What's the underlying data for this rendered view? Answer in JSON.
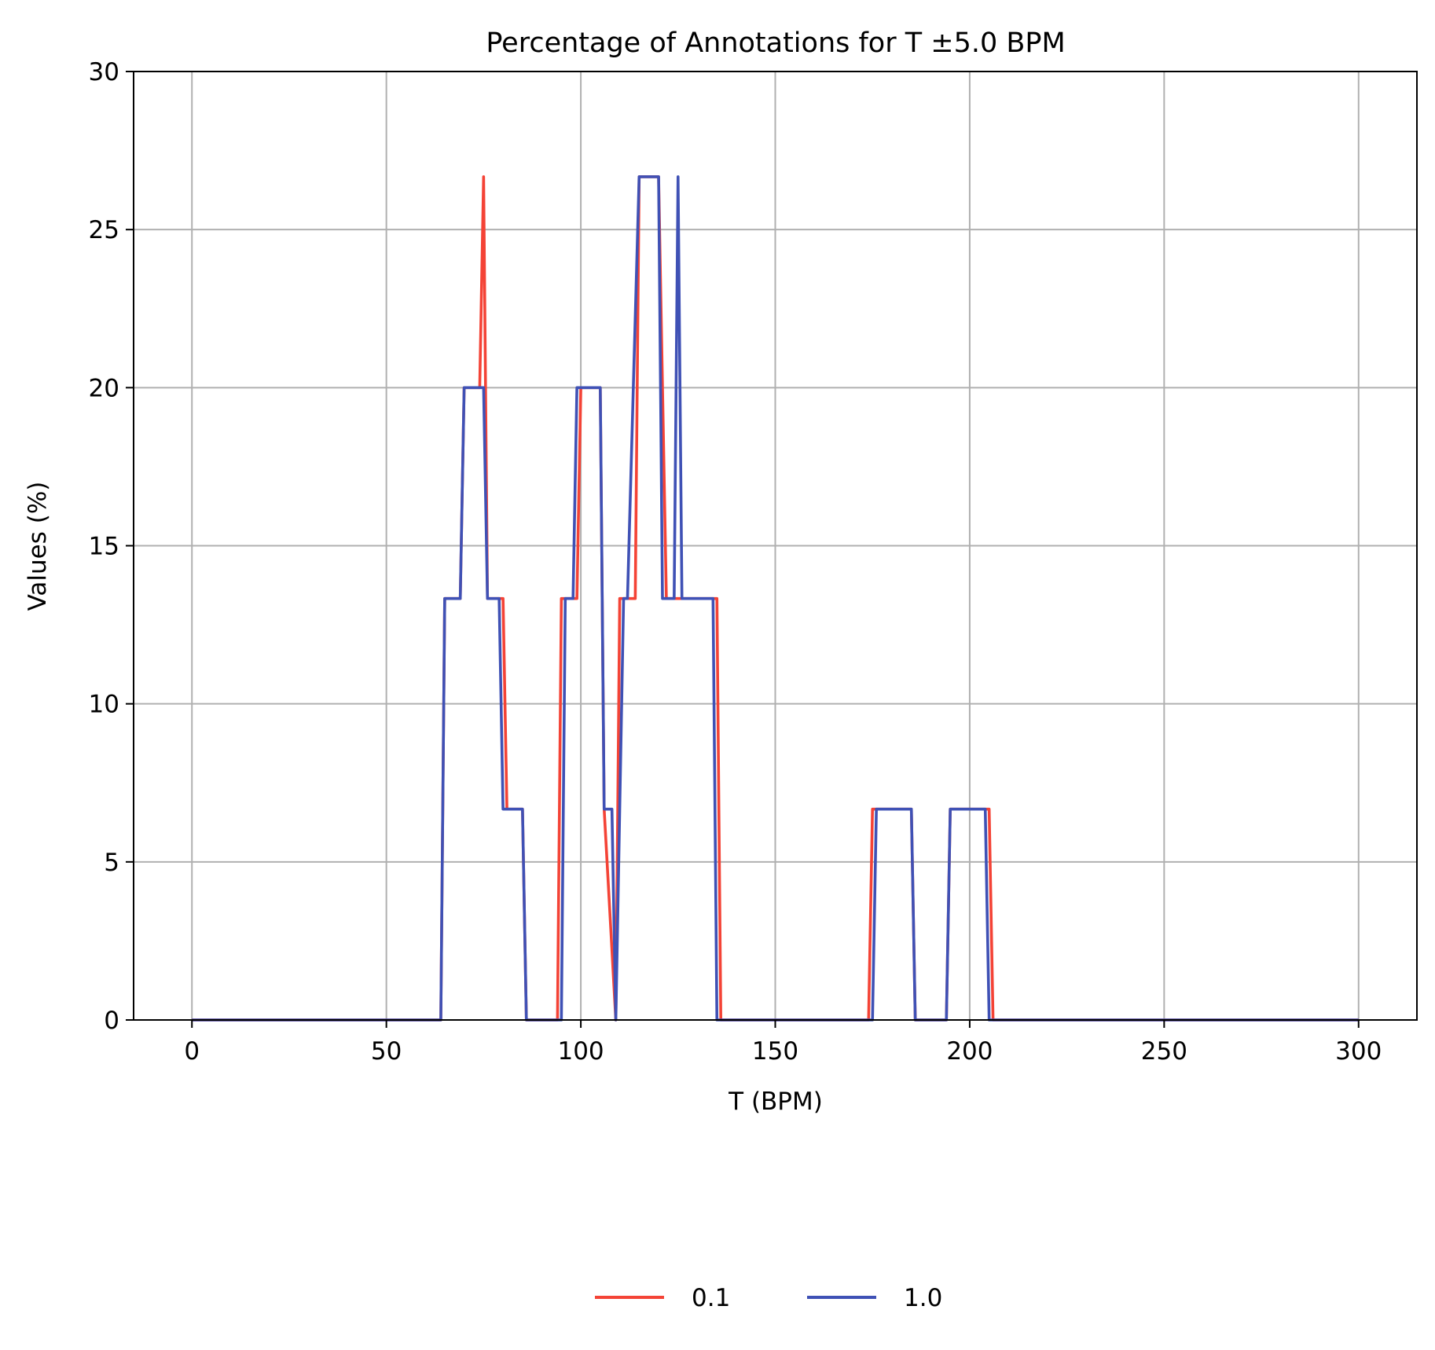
{
  "chart_data": {
    "type": "line",
    "title": "Percentage of Annotations for T ±5.0 BPM",
    "xlabel": "T (BPM)",
    "ylabel": "Values (%)",
    "xlim": [
      -15,
      315
    ],
    "ylim": [
      0,
      30
    ],
    "xticks": [
      0,
      50,
      100,
      150,
      200,
      250,
      300
    ],
    "yticks": [
      0,
      5,
      10,
      15,
      20,
      25,
      30
    ],
    "grid": true,
    "legend_position": "bottom-center",
    "series": [
      {
        "name": "0.1",
        "color": "#f44336",
        "x": [
          0,
          64,
          65,
          69,
          70,
          74,
          75,
          76,
          80,
          81,
          85,
          86,
          94,
          95,
          99,
          100,
          105,
          106,
          109,
          110,
          114,
          115,
          119,
          120,
          122,
          123,
          125,
          126,
          135,
          136,
          174,
          175,
          185,
          186,
          194,
          195,
          205,
          206,
          300
        ],
        "values": [
          0,
          0,
          13.33,
          13.33,
          20,
          20,
          26.67,
          13.33,
          13.33,
          6.67,
          6.67,
          0,
          0,
          13.33,
          13.33,
          20,
          20,
          6.67,
          0,
          13.33,
          13.33,
          26.67,
          26.67,
          26.67,
          13.33,
          13.33,
          13.33,
          13.33,
          13.33,
          0,
          0,
          6.67,
          6.67,
          0,
          0,
          6.67,
          6.67,
          0,
          0
        ]
      },
      {
        "name": "1.0",
        "color": "#3f51b5",
        "x": [
          0,
          64,
          65,
          69,
          70,
          75,
          76,
          79,
          80,
          85,
          86,
          95,
          96,
          98,
          99,
          105,
          106,
          108,
          109,
          111,
          112,
          115,
          116,
          119,
          120,
          121,
          122,
          124,
          125,
          126,
          134,
          135,
          175,
          176,
          185,
          186,
          194,
          195,
          204,
          205,
          300
        ],
        "values": [
          0,
          0,
          13.33,
          13.33,
          20,
          20,
          13.33,
          13.33,
          6.67,
          6.67,
          0,
          0,
          13.33,
          13.33,
          20,
          20,
          6.67,
          6.67,
          0,
          13.33,
          13.33,
          26.67,
          26.67,
          26.67,
          26.67,
          13.33,
          13.33,
          13.33,
          26.67,
          13.33,
          13.33,
          0,
          0,
          6.67,
          6.67,
          0,
          0,
          6.67,
          6.67,
          0,
          0
        ]
      }
    ]
  }
}
